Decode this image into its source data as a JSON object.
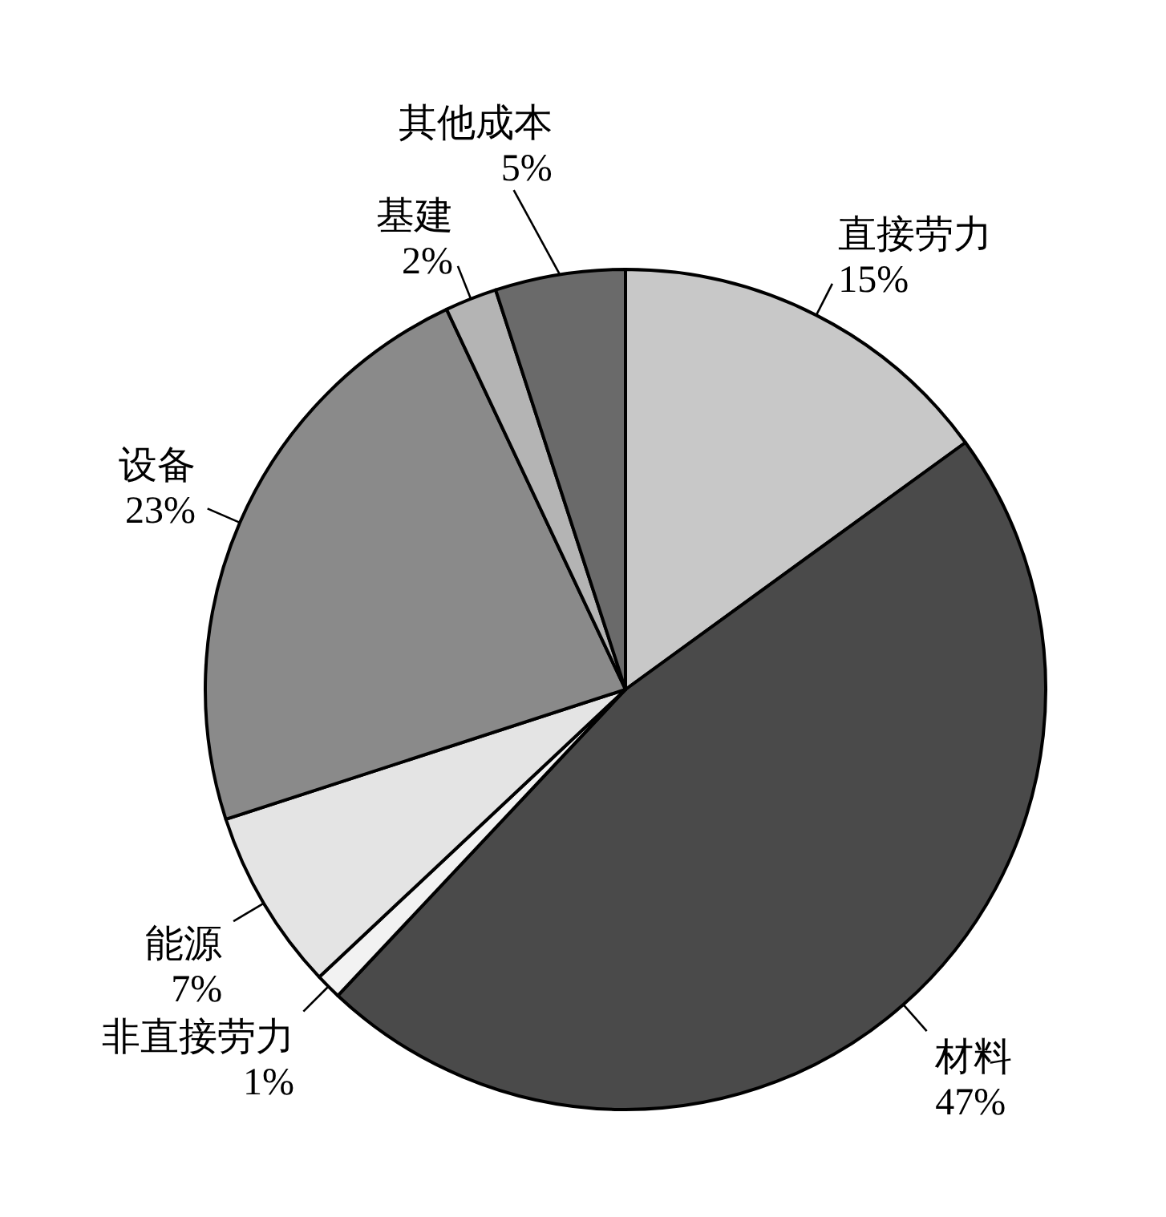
{
  "chart_data": {
    "type": "pie",
    "categories": [
      "直接劳力",
      "材料",
      "非直接劳力",
      "能源",
      "设备",
      "基建",
      "其他成本"
    ],
    "values": [
      15,
      47,
      1,
      7,
      23,
      2,
      5
    ],
    "value_labels": [
      "15%",
      "47%",
      "1%",
      "7%",
      "23%",
      "2%",
      "5%"
    ],
    "colors": [
      "#c8c8c8",
      "#4a4a4a",
      "#f2f2f2",
      "#e4e4e4",
      "#8a8a8a",
      "#b4b4b4",
      "#6a6a6a"
    ]
  }
}
